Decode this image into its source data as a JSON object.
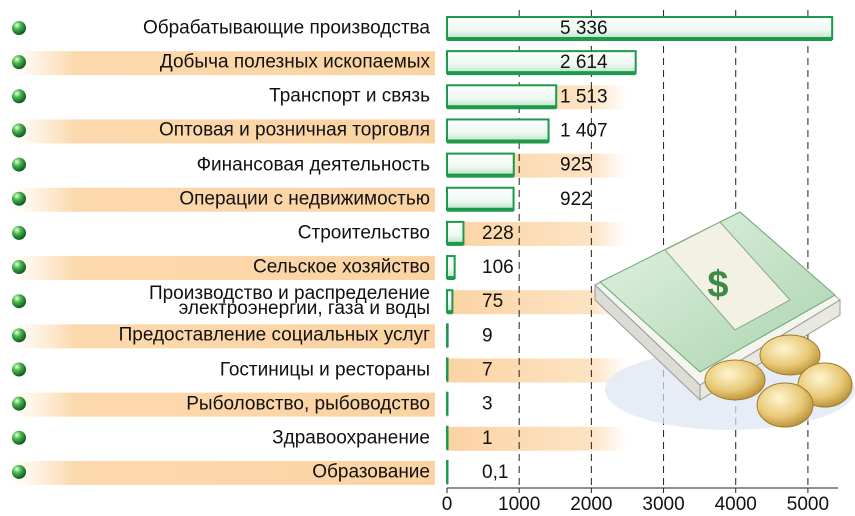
{
  "chart_data": {
    "type": "bar",
    "orientation": "horizontal",
    "categories": [
      "Обрабатывающие производства",
      "Добыча полезных ископаемых",
      "Транспорт и связь",
      "Оптовая и розничная торговля",
      "Финансовая деятельность",
      "Операции с недвижимостью",
      "Строительство",
      "Сельское хозяйство",
      "Производство и распределение\nэлектроэнергии, газа и воды",
      "Предоставление социальных услуг",
      "Гостиницы и рестораны",
      "Рыболовство, рыбоводство",
      "Здравоохранение",
      "Образование"
    ],
    "values": [
      5336,
      2614,
      1513,
      1407,
      925,
      922,
      228,
      106,
      75,
      9,
      7,
      3,
      1,
      0.1
    ],
    "value_labels": [
      "5 336",
      "2 614",
      "1 513",
      "1 407",
      "925",
      "922",
      "228",
      "106",
      "75",
      "9",
      "7",
      "3",
      "1",
      "0,1"
    ],
    "color": "#1a9a4a",
    "xlim": [
      0,
      5500
    ],
    "xticks": [
      0,
      1000,
      2000,
      3000,
      4000,
      5000
    ],
    "grid": true
  }
}
